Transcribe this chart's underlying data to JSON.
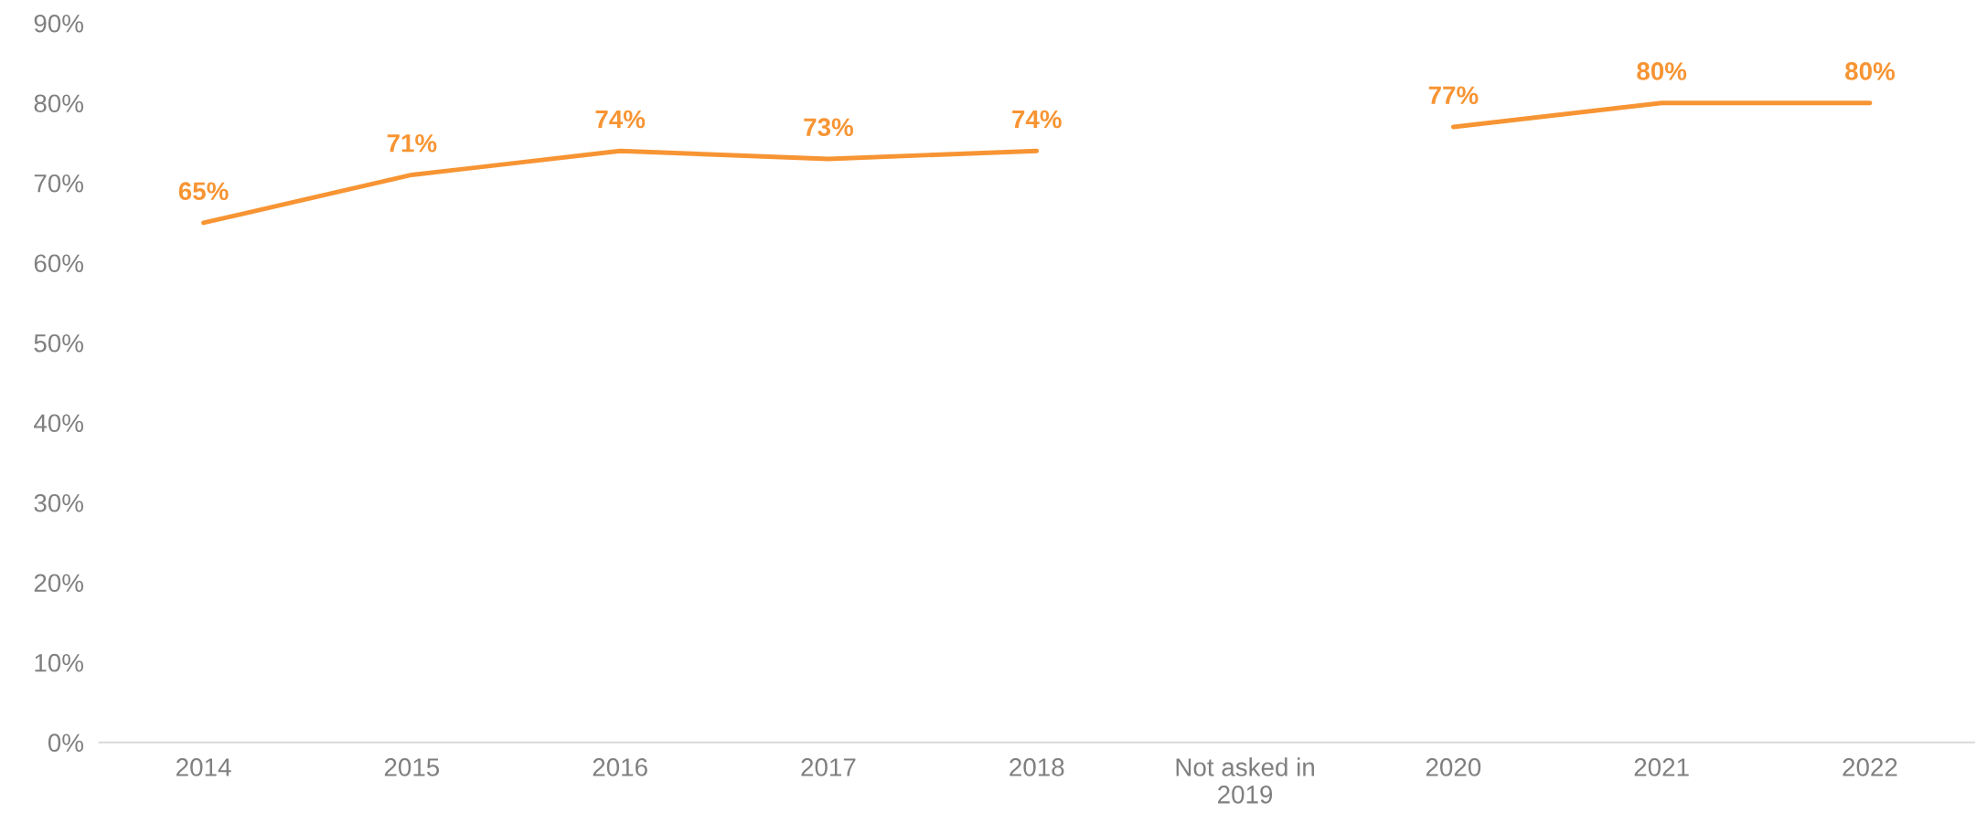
{
  "chart_data": {
    "type": "line",
    "categories": [
      "2014",
      "2015",
      "2016",
      "2017",
      "2018",
      "Not asked in\n2019",
      "2020",
      "2021",
      "2022"
    ],
    "series": [
      {
        "color": "#f79433",
        "values": [
          65,
          71,
          74,
          73,
          74,
          null,
          77,
          80,
          80
        ],
        "value_labels": [
          "65%",
          "71%",
          "74%",
          "73%",
          "74%",
          null,
          "77%",
          "80%",
          "80%"
        ]
      }
    ],
    "ylim": [
      0,
      90
    ],
    "yticks": [
      {
        "value": 0,
        "label": "0%"
      },
      {
        "value": 10,
        "label": "10%"
      },
      {
        "value": 20,
        "label": "20%"
      },
      {
        "value": 30,
        "label": "30%"
      },
      {
        "value": 40,
        "label": "40%"
      },
      {
        "value": 50,
        "label": "50%"
      },
      {
        "value": 60,
        "label": "60%"
      },
      {
        "value": 70,
        "label": "70%"
      },
      {
        "value": 80,
        "label": "80%"
      },
      {
        "value": 90,
        "label": "90%"
      }
    ],
    "grid": false,
    "legend": false,
    "marker": "none",
    "line_style": "solid"
  }
}
